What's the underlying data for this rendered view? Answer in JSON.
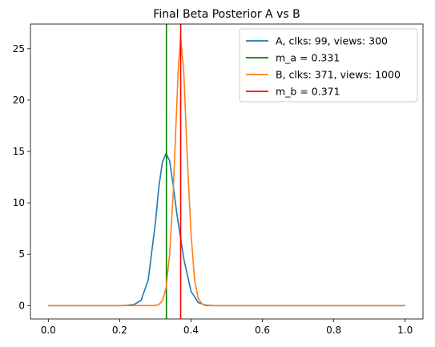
{
  "chart_data": {
    "type": "line",
    "title": "Final Beta Posterior A vs B",
    "xlabel": "",
    "ylabel": "",
    "xlim": [
      -0.05,
      1.05
    ],
    "ylim": [
      -1.3,
      27.4
    ],
    "xticks": [
      0.0,
      0.2,
      0.4,
      0.6,
      0.8,
      1.0
    ],
    "xtick_labels": [
      "0.0",
      "0.2",
      "0.4",
      "0.6",
      "0.8",
      "1.0"
    ],
    "yticks": [
      0,
      5,
      10,
      15,
      20,
      25
    ],
    "ytick_labels": [
      "0",
      "5",
      "10",
      "15",
      "20",
      "25"
    ],
    "grid": false,
    "legend_position": "top-right",
    "series": [
      {
        "name": "A, clks: 99, views: 300",
        "color": "#1f77b4",
        "kind": "curve",
        "x": [
          0.0,
          0.2,
          0.22,
          0.24,
          0.26,
          0.28,
          0.3,
          0.31,
          0.32,
          0.33,
          0.34,
          0.35,
          0.36,
          0.38,
          0.4,
          0.42,
          0.44,
          0.46,
          0.5,
          1.0
        ],
        "values": [
          0.0,
          0.0,
          0.02,
          0.1,
          0.5,
          2.5,
          8.0,
          11.6,
          14.0,
          14.8,
          14.1,
          11.7,
          9.0,
          4.5,
          1.4,
          0.3,
          0.05,
          0.0,
          0.0,
          0.0
        ]
      },
      {
        "name": "m_a = 0.331",
        "color": "#008000",
        "kind": "vline",
        "x_value": 0.331
      },
      {
        "name": "B, clks: 371, views: 1000",
        "color": "#ff7f0e",
        "kind": "curve",
        "x": [
          0.0,
          0.3,
          0.31,
          0.32,
          0.33,
          0.34,
          0.35,
          0.36,
          0.365,
          0.371,
          0.38,
          0.39,
          0.4,
          0.41,
          0.42,
          0.43,
          0.44,
          0.5,
          1.0
        ],
        "values": [
          0.0,
          0.0,
          0.1,
          0.5,
          1.7,
          5.0,
          11.0,
          19.5,
          23.5,
          26.1,
          22.5,
          14.0,
          7.0,
          2.5,
          0.7,
          0.2,
          0.0,
          0.0,
          0.0
        ]
      },
      {
        "name": "m_b = 0.371",
        "color": "#ff0000",
        "kind": "vline",
        "x_value": 0.371
      }
    ]
  }
}
